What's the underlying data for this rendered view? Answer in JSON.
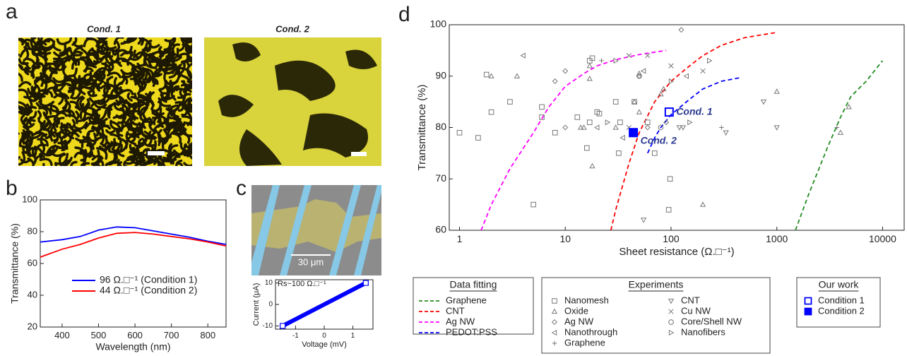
{
  "panel_labels": [
    "a",
    "b",
    "c",
    "d"
  ],
  "images": {
    "cond1_title": "Cond. 1",
    "cond2_title": "Cond. 2",
    "scale_label": "30 μm"
  },
  "chart_data": [
    {
      "type": "line",
      "xlabel": "Wavelength (nm)",
      "ylabel": "Transmittance (%)",
      "x": [
        340,
        400,
        450,
        500,
        550,
        600,
        650,
        700,
        750,
        800,
        850
      ],
      "xlim": [
        340,
        850
      ],
      "xticks": [
        400,
        500,
        600,
        700,
        800
      ],
      "ylim": [
        20,
        100
      ],
      "yticks": [
        20,
        40,
        60,
        80,
        100
      ],
      "series": [
        {
          "name": "96 Ω.□⁻¹ (Condition 1)",
          "color": "#0000ff",
          "values": [
            73.5,
            75,
            77,
            81,
            83,
            82.5,
            80.5,
            78.5,
            76.5,
            74,
            72
          ]
        },
        {
          "name": "44 Ω.□⁻¹ (Condition 2)",
          "color": "#ff0000",
          "values": [
            64,
            69,
            72,
            76,
            79,
            79.5,
            78.5,
            77,
            75.5,
            73.5,
            71
          ]
        }
      ]
    },
    {
      "type": "line",
      "annotation": "Rs~100 Ω.□⁻¹",
      "xlabel": "Voltage (mV)",
      "ylabel": "Current (μA)",
      "x": [
        -1.45,
        -1,
        -0.5,
        0,
        0.5,
        1,
        1.45
      ],
      "xlim": [
        -1.7,
        1.7
      ],
      "xticks": [
        -1,
        0,
        1
      ],
      "ylim": [
        -11.5,
        11.5
      ],
      "yticks": [
        -10,
        0,
        10
      ],
      "end_markers": true,
      "series": [
        {
          "color": "#0000ff",
          "values": [
            -10,
            -6.9,
            -3.45,
            0,
            3.45,
            6.9,
            10
          ]
        }
      ]
    },
    {
      "type": "scatter",
      "xscale": "log",
      "xlabel": "Sheet resistance (Ω.□⁻¹)",
      "ylabel": "Transmittance (%)",
      "xlim": [
        0.8,
        16000
      ],
      "xticks": [
        1,
        10,
        100,
        1000,
        10000
      ],
      "ylim": [
        60,
        100
      ],
      "yticks": [
        60,
        70,
        80,
        90,
        100
      ],
      "groups": [
        {
          "title": "Data fitting",
          "series": [
            {
              "name": "Graphene",
              "color": "#228b22",
              "dashed": true,
              "x": [
                1500,
                2000,
                3000,
                4000,
                5000,
                7000,
                10000
              ],
              "values": [
                60,
                67,
                76,
                82,
                86,
                89,
                93
              ]
            },
            {
              "name": "CNT",
              "color": "#ff0000",
              "dashed": true,
              "x": [
                27,
                30,
                40,
                50,
                70,
                100,
                150,
                200,
                300,
                500,
                1000
              ],
              "values": [
                60,
                64,
                73,
                79,
                85,
                89,
                92,
                94,
                96,
                97.5,
                98.5
              ]
            },
            {
              "name": "Ag NW",
              "color": "#ff00ff",
              "dashed": true,
              "x": [
                1.6,
                2,
                3,
                5,
                7,
                10,
                15,
                20,
                30,
                50,
                90
              ],
              "values": [
                60,
                65,
                72,
                79,
                84,
                88,
                90.5,
                92,
                93.2,
                94.2,
                95
              ]
            },
            {
              "name": "PEDOT:PSS",
              "color": "#0000ff",
              "dashed": true,
              "x": [
                60,
                70,
                80,
                100,
                150,
                200,
                300,
                450
              ],
              "values": [
                75,
                78,
                80,
                82.5,
                85.5,
                87.5,
                89,
                89.7
              ]
            }
          ]
        },
        {
          "title": "Experiments",
          "series": [
            {
              "name": "Nanomesh",
              "color": "#777777",
              "marker": "square",
              "x": [
                1,
                1.5,
                1.8,
                2,
                3,
                5,
                6,
                6,
                8,
                13,
                16,
                17,
                17,
                18,
                20,
                21,
                30,
                32,
                33,
                45,
                60,
                70,
                98,
                95
              ],
              "values": [
                79,
                78,
                90.3,
                83,
                85,
                65,
                84,
                82,
                79,
                82,
                76,
                81,
                93,
                93.5,
                83,
                82.7,
                85,
                75,
                81,
                85,
                81,
                75,
                70,
                64
              ]
            },
            {
              "name": "Oxide",
              "color": "#777777",
              "marker": "triangle-up",
              "x": [
                2,
                3.5,
                17,
                17,
                15,
                14,
                30,
                45,
                50,
                80,
                85,
                18,
                50,
                200,
                1000,
                4000,
                4800
              ],
              "values": [
                90,
                90,
                89.5,
                92,
                80,
                80,
                80,
                85,
                83,
                86.5,
                87.5,
                72.5,
                90.5,
                65,
                87,
                79,
                84
              ]
            },
            {
              "name": "Ag NW",
              "color": "#777777",
              "marker": "diamond",
              "x": [
                8,
                10,
                10,
                50,
                90,
                125,
                60
              ],
              "values": [
                89,
                91,
                80,
                90,
                81,
                99,
                80
              ]
            },
            {
              "name": "Nanothrough",
              "color": "#777777",
              "marker": "triangle-left",
              "x": [
                4,
                20,
                55,
                140,
                35
              ],
              "values": [
                94,
                80,
                91,
                90,
                78
              ]
            },
            {
              "name": "Graphene",
              "color": "#777777",
              "marker": "plus",
              "x": [
                22,
                300,
                3700
              ],
              "values": [
                93,
                80,
                80
              ]
            },
            {
              "name": "CNT",
              "color": "#777777",
              "marker": "triangle-down",
              "x": [
                55,
                120,
                330,
                750,
                1000,
                130
              ],
              "values": [
                62,
                80,
                79,
                85,
                80,
                80
              ]
            },
            {
              "name": "Cu NW",
              "color": "#777777",
              "marker": "x",
              "x": [
                40,
                60,
                100,
                200,
                40
              ],
              "values": [
                80,
                94,
                92,
                91,
                94
              ]
            },
            {
              "name": "Core/Shell NW",
              "color": "#777777",
              "marker": "circle",
              "x": [
                50,
                80
              ],
              "values": [
                90,
                80
              ]
            },
            {
              "name": "Nanofibers",
              "color": "#777777",
              "marker": "triangle-right",
              "x": [
                30,
                25,
                150,
                230,
                100
              ],
              "values": [
                93,
                81,
                81,
                93,
                89
              ]
            }
          ]
        },
        {
          "title": "Our work",
          "series": [
            {
              "name": "Condition 1",
              "label": "Cond. 1",
              "color": "#0000ff",
              "marker": "square",
              "filled": false,
              "x": [
                96
              ],
              "values": [
                83
              ]
            },
            {
              "name": "Condition 2",
              "label": "Cond. 2",
              "color": "#0000ff",
              "marker": "square",
              "filled": true,
              "x": [
                44
              ],
              "values": [
                79
              ]
            }
          ]
        }
      ]
    }
  ]
}
